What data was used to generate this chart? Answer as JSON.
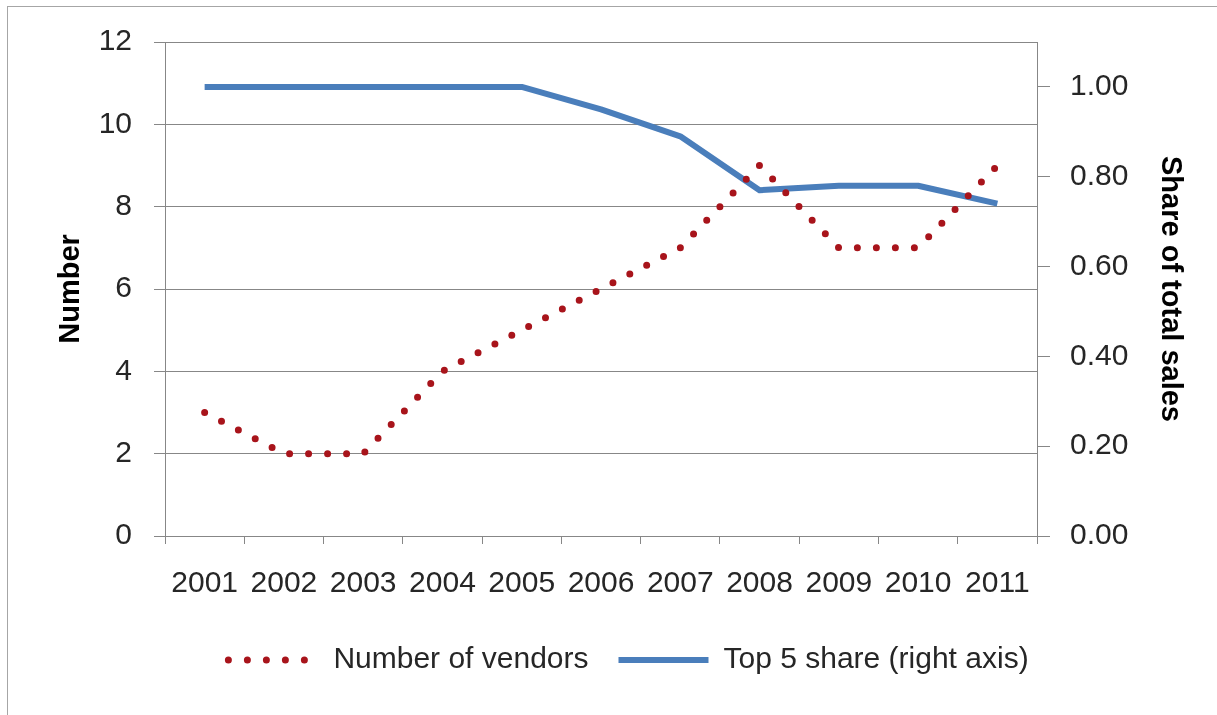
{
  "chart_data": {
    "type": "line",
    "categories": [
      "2001",
      "2002",
      "2003",
      "2004",
      "2005",
      "2006",
      "2007",
      "2008",
      "2009",
      "2010",
      "2011"
    ],
    "series": [
      {
        "name": "Number of vendors",
        "color": "#a8141b",
        "line_style": "dotted",
        "values": [
          3,
          2,
          2,
          4,
          5,
          6,
          7,
          9,
          7,
          7,
          9
        ]
      },
      {
        "name": "Top 5 share (right axis)",
        "color": "#4a7ebb",
        "line_style": "solid",
        "axis": "y2",
        "values": [
          1,
          1,
          1,
          1,
          1,
          0.95,
          0.89,
          0.77,
          0.78,
          0.78,
          0.74
        ]
      }
    ],
    "ylabel": "Number",
    "y2label": "Share of total sales",
    "ylim": [
      0,
      12
    ],
    "yticks": [
      0,
      2,
      4,
      6,
      8,
      10,
      12
    ],
    "y2lim": [
      0,
      1.1
    ],
    "y2ticks": [
      {
        "value": 0,
        "label": "0.00"
      },
      {
        "value": 0.2,
        "label": "0.20"
      },
      {
        "value": 0.4,
        "label": "0.40"
      },
      {
        "value": 0.6,
        "label": "0.60"
      },
      {
        "value": 0.8,
        "label": "0.80"
      },
      {
        "value": 1,
        "label": "1.00"
      }
    ],
    "grid": "y",
    "legend": "bottom",
    "marker": "none"
  }
}
